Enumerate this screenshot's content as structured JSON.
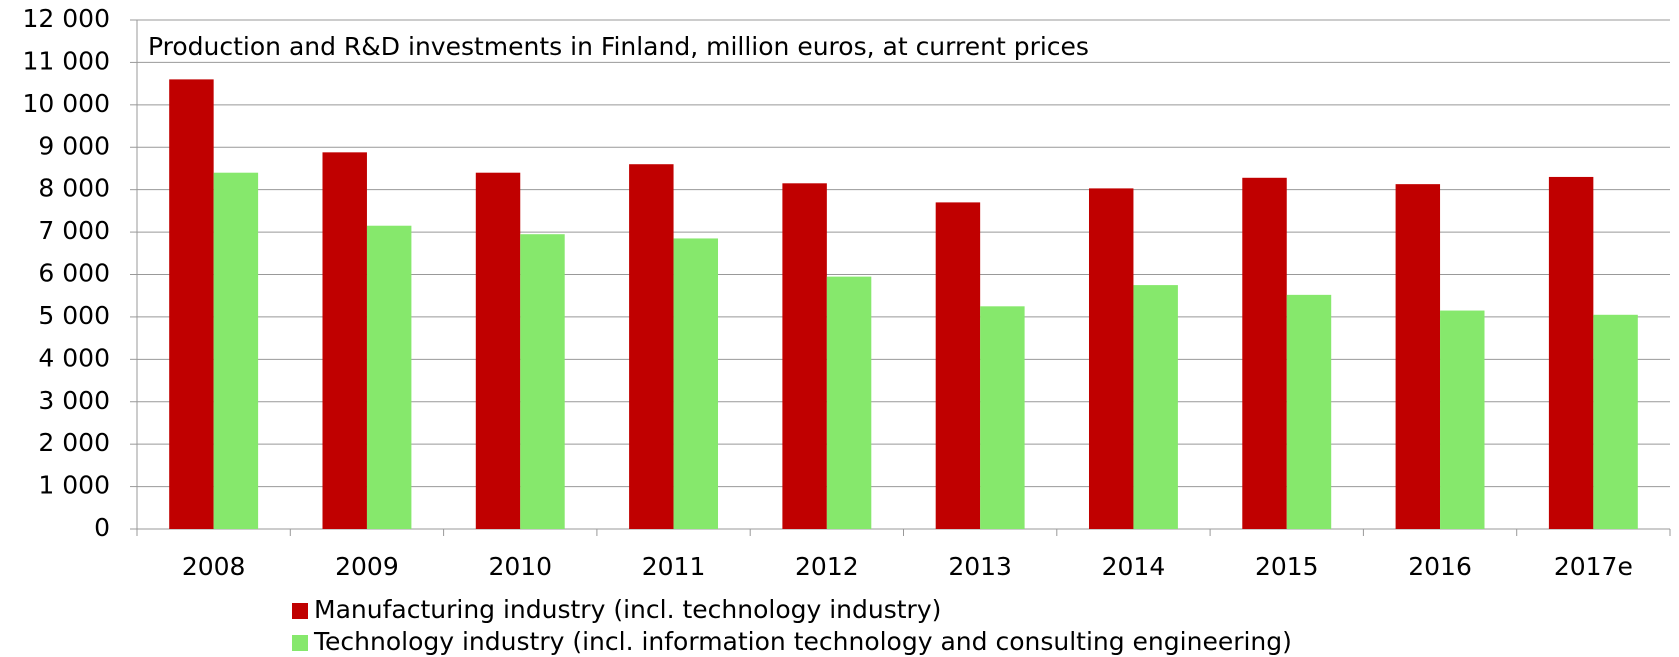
{
  "chart_data": {
    "type": "bar",
    "title": "Production and R&D investments in Finland, million euros, at current prices",
    "categories": [
      "2008",
      "2009",
      "2010",
      "2011",
      "2012",
      "2013",
      "2014",
      "2015",
      "2016",
      "2017e"
    ],
    "series": [
      {
        "name": "Manufacturing industry (incl. technology industry)",
        "color": "#c00000",
        "values": [
          10600,
          8880,
          8400,
          8600,
          8150,
          7700,
          8030,
          8280,
          8130,
          8300
        ]
      },
      {
        "name": "Technology industry (incl. information technology and consulting engineering)",
        "color": "#86e86c",
        "values": [
          8400,
          7150,
          6950,
          6850,
          5950,
          5250,
          5750,
          5520,
          5150,
          5050
        ]
      }
    ],
    "ylim": [
      0,
      12000
    ],
    "yticks": [
      0,
      {
        "value": 1000,
        "label": "1 000"
      },
      {
        "value": 2000,
        "label": "2 000"
      },
      {
        "value": 3000,
        "label": "3 000"
      },
      {
        "value": 4000,
        "label": "4 000"
      },
      {
        "value": 5000,
        "label": "5 000"
      },
      {
        "value": 6000,
        "label": "6 000"
      },
      {
        "value": 7000,
        "label": "7 000"
      },
      {
        "value": 8000,
        "label": "8 000"
      },
      {
        "value": 9000,
        "label": "9 000"
      },
      {
        "value": 10000,
        "label": "10 000"
      },
      {
        "value": 11000,
        "label": "11 000"
      },
      {
        "value": 12000,
        "label": "12 000"
      }
    ],
    "grid": true,
    "legend": "bottom"
  }
}
